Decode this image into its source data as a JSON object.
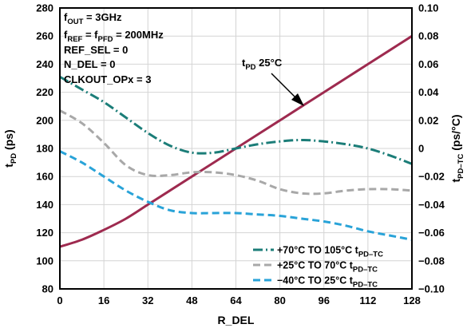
{
  "chart_data": {
    "type": "line",
    "xlabel": "R_DEL",
    "ylabel_left": {
      "main": "t",
      "sub": "PD",
      "unit": " (ps)"
    },
    "ylabel_right": {
      "main": "t",
      "sub": "PD–TC",
      "unit": " (ps/°C)"
    },
    "x_ticks": [
      0,
      16,
      32,
      48,
      64,
      80,
      96,
      112,
      128
    ],
    "xlim": [
      0,
      128
    ],
    "y_left_ticks": [
      "80",
      "100",
      "120",
      "140",
      "160",
      "180",
      "200",
      "220",
      "240",
      "260",
      "280"
    ],
    "ylim_left": [
      80,
      280
    ],
    "y_right_ticks": [
      "−0.10",
      "−0.08",
      "−0.06",
      "−0.04",
      "−0.02",
      "0",
      "0.02",
      "0.04",
      "0.06",
      "0.08",
      "0.10"
    ],
    "ylim_right": [
      -0.1,
      0.1
    ],
    "grid": true,
    "conditions": [
      {
        "main": "f",
        "sub": "OUT",
        "rest": " = 3GHz"
      },
      {
        "main": "f",
        "sub": "REF",
        "rest": " = f",
        "sub2": "PFD",
        "rest2": " = 200MHz"
      },
      {
        "main": "REF_SEL = 0"
      },
      {
        "main": "N_DEL = 0"
      },
      {
        "main": "CLKOUT_OPx = 3"
      }
    ],
    "annotation": {
      "main": "t",
      "sub": "PD",
      "rest": " 25°C"
    },
    "series": [
      {
        "name": "tPD 25°C",
        "axis": "left",
        "color": "#9e2a4f",
        "style": "solid",
        "x": [
          0,
          8,
          16,
          24,
          32,
          40,
          48,
          56,
          64,
          72,
          80,
          88,
          96,
          104,
          112,
          120,
          128
        ],
        "y": [
          110,
          115,
          122,
          130,
          140,
          150,
          160,
          170,
          180,
          190,
          200,
          210,
          220,
          230,
          240,
          250,
          260
        ]
      },
      {
        "name": {
          "main": "+70°C TO 105°C t",
          "sub": "PD–TC"
        },
        "axis": "right",
        "color": "#1b7d78",
        "style": "dashdot",
        "x": [
          0,
          8,
          16,
          24,
          32,
          40,
          48,
          56,
          64,
          72,
          80,
          88,
          96,
          104,
          112,
          120,
          128
        ],
        "y": [
          0.051,
          0.042,
          0.033,
          0.022,
          0.011,
          0.002,
          -0.003,
          -0.003,
          0.0,
          0.003,
          0.005,
          0.006,
          0.005,
          0.003,
          0.0,
          -0.005,
          -0.011
        ]
      },
      {
        "name": {
          "main": "+25°C TO 70°C t",
          "sub": "PD–TC"
        },
        "axis": "right",
        "color": "#a8a8a8",
        "style": "dash",
        "x": [
          0,
          8,
          16,
          24,
          32,
          40,
          48,
          56,
          64,
          72,
          80,
          88,
          96,
          104,
          112,
          120,
          128
        ],
        "y": [
          0.027,
          0.018,
          0.004,
          -0.012,
          -0.019,
          -0.019,
          -0.017,
          -0.017,
          -0.019,
          -0.023,
          -0.029,
          -0.032,
          -0.032,
          -0.03,
          -0.029,
          -0.029,
          -0.03
        ]
      },
      {
        "name": {
          "main": "−40°C TO 25°C t",
          "sub": "PD–TC"
        },
        "axis": "right",
        "color": "#29a3d8",
        "style": "dash",
        "x": [
          0,
          8,
          16,
          24,
          32,
          40,
          48,
          56,
          64,
          72,
          80,
          88,
          96,
          104,
          112,
          120,
          128
        ],
        "y": [
          -0.002,
          -0.01,
          -0.02,
          -0.03,
          -0.038,
          -0.044,
          -0.046,
          -0.046,
          -0.046,
          -0.047,
          -0.048,
          -0.05,
          -0.052,
          -0.055,
          -0.059,
          -0.062,
          -0.065
        ]
      }
    ],
    "legend_placement": "bottom-right"
  }
}
